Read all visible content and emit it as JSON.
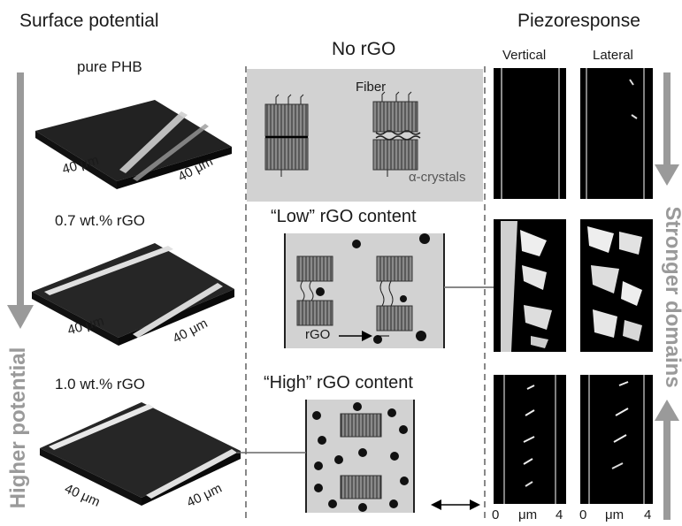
{
  "headers": {
    "surface_potential": "Surface potential",
    "no_rgo": "No rGO",
    "piezoresponse": "Piezoresponse",
    "vertical": "Vertical",
    "lateral": "Lateral"
  },
  "samples": [
    {
      "label": "pure PHB",
      "dim_a": "40 μm",
      "dim_b": "40 μm"
    },
    {
      "label": "0.7 wt.% rGO",
      "dim_a": "40 μm",
      "dim_b": "40 μm"
    },
    {
      "label": "1.0 wt.% rGO",
      "dim_a": "40 μm",
      "dim_b": "40 μm"
    }
  ],
  "schematics": {
    "fiber_label": "Fiber",
    "alpha_label": "α-crystals",
    "low_title": "“Low” rGO content",
    "rgo_label": "rGO",
    "high_title": "“High” rGO content"
  },
  "side_labels": {
    "left": "Higher potential",
    "right": "Stronger domains"
  },
  "axis": {
    "zero": "0",
    "unit": "μm",
    "four": "4"
  },
  "colors": {
    "arrow_grey": "#9a9a9a",
    "panel_grey": "#d2d2d2"
  }
}
